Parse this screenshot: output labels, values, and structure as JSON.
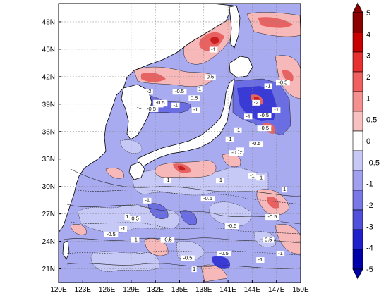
{
  "map": {
    "lon_range": [
      120,
      150
    ],
    "lat_range": [
      19.5,
      50
    ],
    "lon_ticks": [
      "120E",
      "123E",
      "126E",
      "129E",
      "132E",
      "135E",
      "138E",
      "141E",
      "144E",
      "147E",
      "150E"
    ],
    "lat_ticks": [
      "21N",
      "24N",
      "27N",
      "30N",
      "33N",
      "36N",
      "39N",
      "42N",
      "45N",
      "48N"
    ],
    "grid": "dashed",
    "contour_labels": [
      "-1",
      "-0.5",
      "-1",
      "-1",
      "-1",
      "-1",
      "-0.5",
      "-1",
      "-0.5",
      "-1",
      "-1",
      "0.5",
      "1",
      "-1",
      "-0.5",
      "-1",
      "-0.5",
      "-0.5",
      "1",
      "-1",
      "-1",
      "-0.5",
      "-0.5",
      "0.5",
      "1",
      "-1",
      "-1",
      "-0.5",
      "-1",
      "-0.5",
      "-1",
      "-0.5",
      "-0.5",
      "1",
      "0.5",
      "-1",
      "-2",
      "-0.5",
      "-1",
      "-0.5",
      "-1",
      "-0.5",
      "-1",
      "-2",
      "0.5",
      "-1"
    ]
  },
  "colorbar": {
    "labels": [
      "5",
      "4",
      "3",
      "2",
      "1",
      "0.5",
      "0",
      "-0.5",
      "-1",
      "-2",
      "-3",
      "-4",
      "-5"
    ],
    "colors": [
      "#8b0000",
      "#c80000",
      "#e83030",
      "#f06060",
      "#f59090",
      "#f8c0c0",
      "#ffffff",
      "#c8c8f4",
      "#a0a0ee",
      "#7878e6",
      "#5050dc",
      "#2020cc",
      "#0000aa"
    ]
  },
  "palette": {
    "land": "#ffffff",
    "ocean_base": "#a9abf0",
    "light_blue": "#c6c8f6",
    "mid_blue": "#8e90ea",
    "deep_blue": "#4848d8",
    "pink": "#f6b8b8",
    "red": "#ee7070",
    "dark_red": "#d83434"
  }
}
